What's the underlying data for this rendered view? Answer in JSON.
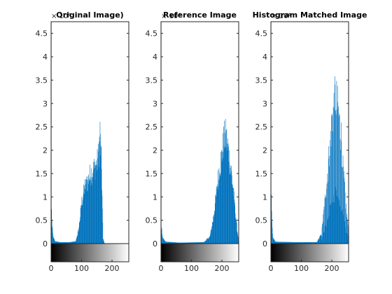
{
  "colors": {
    "bar": "#0072BD",
    "axis": "#262626",
    "background": "#ffffff"
  },
  "chart_data": [
    {
      "type": "bar",
      "title": "Original Image)",
      "y_multiplier": "× 10⁴",
      "xlim": [
        0,
        255
      ],
      "ylim": [
        0,
        4.75
      ],
      "xticks": [
        0,
        100,
        200
      ],
      "yticks": [
        0,
        0.5,
        1,
        1.5,
        2,
        2.5,
        3,
        3.5,
        4,
        4.5
      ],
      "colorbar": "grayscale 0-255",
      "approx_profile": [
        {
          "x": 0,
          "y": 4.75
        },
        {
          "x": 1,
          "y": 0.7
        },
        {
          "x": 3,
          "y": 0.35
        },
        {
          "x": 6,
          "y": 0.15
        },
        {
          "x": 12,
          "y": 0.05
        },
        {
          "x": 30,
          "y": 0.03
        },
        {
          "x": 60,
          "y": 0.03
        },
        {
          "x": 80,
          "y": 0.05
        },
        {
          "x": 90,
          "y": 0.3
        },
        {
          "x": 100,
          "y": 0.9
        },
        {
          "x": 110,
          "y": 1.2
        },
        {
          "x": 120,
          "y": 1.35
        },
        {
          "x": 130,
          "y": 1.5
        },
        {
          "x": 140,
          "y": 1.6
        },
        {
          "x": 150,
          "y": 1.7
        },
        {
          "x": 155,
          "y": 1.9
        },
        {
          "x": 160,
          "y": 2.35
        },
        {
          "x": 165,
          "y": 1.6
        },
        {
          "x": 170,
          "y": 0.1
        },
        {
          "x": 175,
          "y": 0
        },
        {
          "x": 255,
          "y": 0
        }
      ]
    },
    {
      "type": "bar",
      "title": "Reference Image",
      "y_multiplier": "× 10⁴",
      "xlim": [
        0,
        255
      ],
      "ylim": [
        0,
        4.75
      ],
      "xticks": [
        0,
        100,
        200
      ],
      "yticks": [
        0,
        0.5,
        1,
        1.5,
        2,
        2.5,
        3,
        3.5,
        4,
        4.5
      ],
      "colorbar": "grayscale 0-255",
      "approx_profile": [
        {
          "x": 0,
          "y": 4.75
        },
        {
          "x": 1,
          "y": 0.35
        },
        {
          "x": 5,
          "y": 0.12
        },
        {
          "x": 15,
          "y": 0.04
        },
        {
          "x": 60,
          "y": 0.02
        },
        {
          "x": 140,
          "y": 0.03
        },
        {
          "x": 160,
          "y": 0.15
        },
        {
          "x": 170,
          "y": 0.5
        },
        {
          "x": 180,
          "y": 1.0
        },
        {
          "x": 190,
          "y": 1.55
        },
        {
          "x": 200,
          "y": 1.95
        },
        {
          "x": 205,
          "y": 2.2
        },
        {
          "x": 210,
          "y": 2.3
        },
        {
          "x": 215,
          "y": 2.2
        },
        {
          "x": 220,
          "y": 2.0
        },
        {
          "x": 230,
          "y": 1.55
        },
        {
          "x": 240,
          "y": 0.9
        },
        {
          "x": 250,
          "y": 0.25
        },
        {
          "x": 255,
          "y": 0.05
        }
      ]
    },
    {
      "type": "bar",
      "title": "Histogram Matched Image",
      "y_multiplier": "× 10⁴",
      "xlim": [
        0,
        255
      ],
      "ylim": [
        0,
        4.75
      ],
      "xticks": [
        0,
        100,
        200
      ],
      "yticks": [
        0,
        0.5,
        1,
        1.5,
        2,
        2.5,
        3,
        3.5,
        4,
        4.5
      ],
      "colorbar": "grayscale 0-255",
      "approx_profile": [
        {
          "x": 0,
          "y": 4.75
        },
        {
          "x": 1,
          "y": 0.9
        },
        {
          "x": 3,
          "y": 0.4
        },
        {
          "x": 6,
          "y": 0.12
        },
        {
          "x": 15,
          "y": 0.04
        },
        {
          "x": 80,
          "y": 0.03
        },
        {
          "x": 150,
          "y": 0.03
        },
        {
          "x": 165,
          "y": 0.2
        },
        {
          "x": 175,
          "y": 0.8
        },
        {
          "x": 185,
          "y": 1.5
        },
        {
          "x": 195,
          "y": 2.3
        },
        {
          "x": 205,
          "y": 2.9
        },
        {
          "x": 212,
          "y": 3.15
        },
        {
          "x": 220,
          "y": 2.8
        },
        {
          "x": 230,
          "y": 2.3
        },
        {
          "x": 240,
          "y": 1.3
        },
        {
          "x": 248,
          "y": 0.6
        },
        {
          "x": 255,
          "y": 0.4
        }
      ]
    }
  ]
}
